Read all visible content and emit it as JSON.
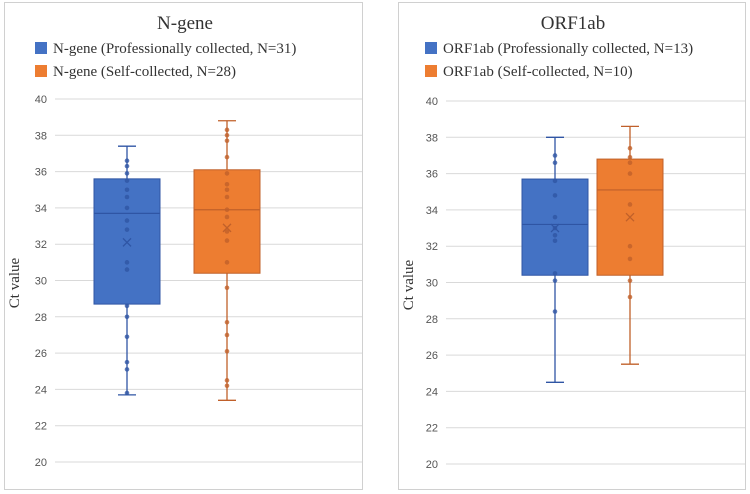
{
  "chart_data": [
    {
      "type": "box",
      "title": "N-gene",
      "ylabel": "Ct value",
      "xlabel": "",
      "ylim": [
        20,
        40
      ],
      "yticks": [
        "20",
        "22",
        "24",
        "26",
        "28",
        "30",
        "32",
        "34",
        "36",
        "38",
        "40"
      ],
      "grid": true,
      "legend_position": "top",
      "series": [
        {
          "name": "N-gene (Professionally collected, N=31)",
          "color": "#4472C4",
          "min": 23.7,
          "q1": 28.7,
          "median": 33.7,
          "q3": 35.6,
          "max": 37.4,
          "mean": 32.1,
          "points": [
            36.6,
            36.3,
            35.9,
            35.5,
            35.0,
            34.6,
            34.0,
            33.3,
            32.8,
            31.0,
            30.6,
            28.6,
            28.0,
            26.9,
            25.5,
            25.1,
            23.8
          ]
        },
        {
          "name": "N-gene (Self-collected, N=28)",
          "color": "#ED7D31",
          "min": 23.4,
          "q1": 30.4,
          "median": 33.9,
          "q3": 36.1,
          "max": 38.8,
          "mean": 32.9,
          "points": [
            38.3,
            38.0,
            37.7,
            36.8,
            35.9,
            35.3,
            35.0,
            34.6,
            33.9,
            33.5,
            32.7,
            32.2,
            31.0,
            29.6,
            27.7,
            27.0,
            26.1,
            24.5,
            24.2
          ]
        }
      ]
    },
    {
      "type": "box",
      "title": "ORF1ab",
      "ylabel": "Ct value",
      "xlabel": "",
      "ylim": [
        20,
        40
      ],
      "yticks": [
        "20",
        "22",
        "24",
        "26",
        "28",
        "30",
        "32",
        "34",
        "36",
        "38",
        "40"
      ],
      "grid": true,
      "legend_position": "top",
      "series": [
        {
          "name": "ORF1ab (Professionally collected, N=13)",
          "color": "#4472C4",
          "min": 24.5,
          "q1": 30.4,
          "median": 33.2,
          "q3": 35.7,
          "max": 38.0,
          "mean": 33.0,
          "points": [
            37.0,
            36.6,
            35.6,
            34.8,
            33.6,
            33.0,
            32.6,
            32.3,
            30.5,
            30.1,
            28.4
          ]
        },
        {
          "name": "ORF1ab (Self-collected, N=10)",
          "color": "#ED7D31",
          "min": 25.5,
          "q1": 30.4,
          "median": 35.1,
          "q3": 36.8,
          "max": 38.6,
          "mean": 33.6,
          "points": [
            37.4,
            36.9,
            36.6,
            36.0,
            34.3,
            32.0,
            31.3,
            30.1,
            29.2
          ]
        }
      ]
    }
  ]
}
